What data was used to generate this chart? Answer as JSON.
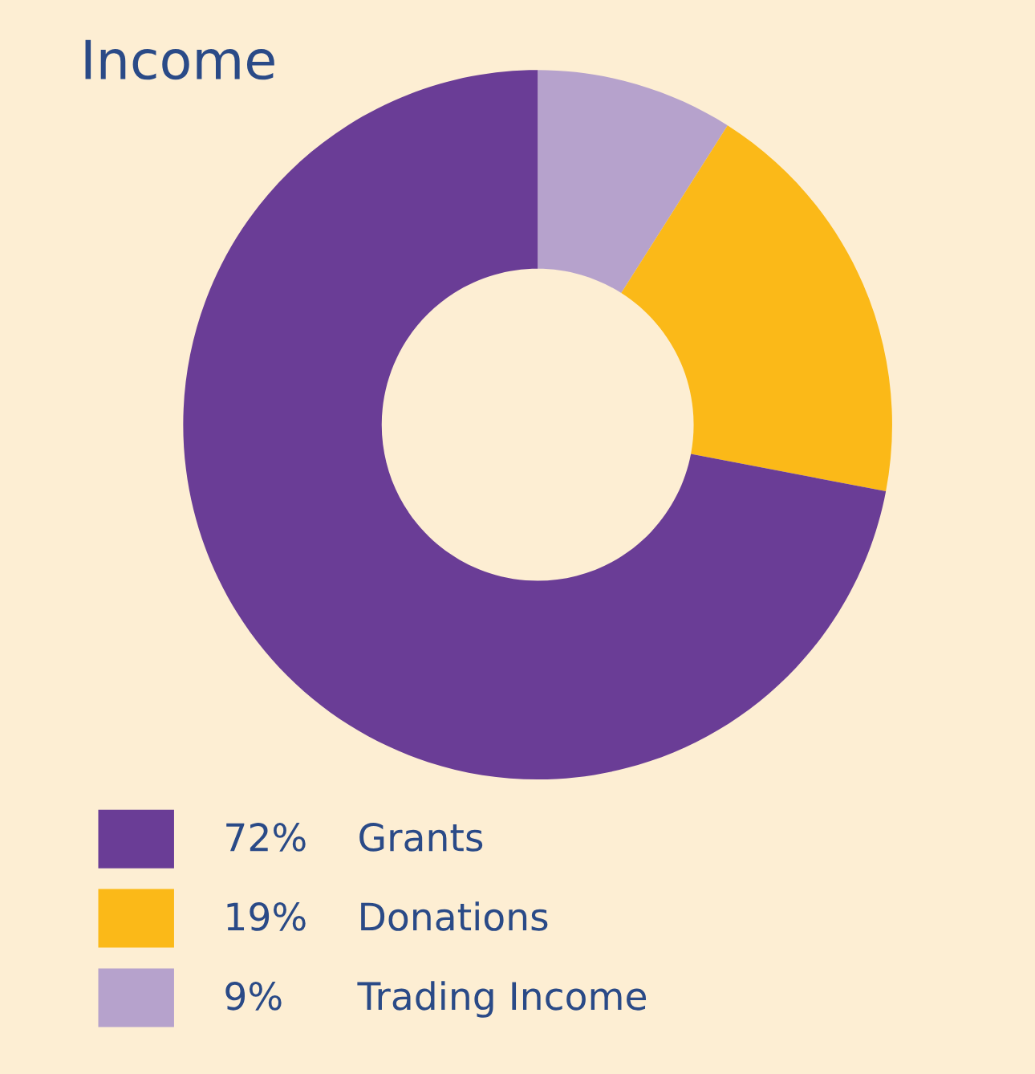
{
  "chart_data": {
    "type": "donut",
    "title": "Income",
    "categories": [
      "Grants",
      "Donations",
      "Trading Income"
    ],
    "values": [
      72,
      19,
      9
    ],
    "value_labels": [
      "72%",
      "19%",
      "9%"
    ],
    "colors": [
      "#6a3d96",
      "#fbb918",
      "#b6a2cc"
    ],
    "legend": "bottom left"
  }
}
